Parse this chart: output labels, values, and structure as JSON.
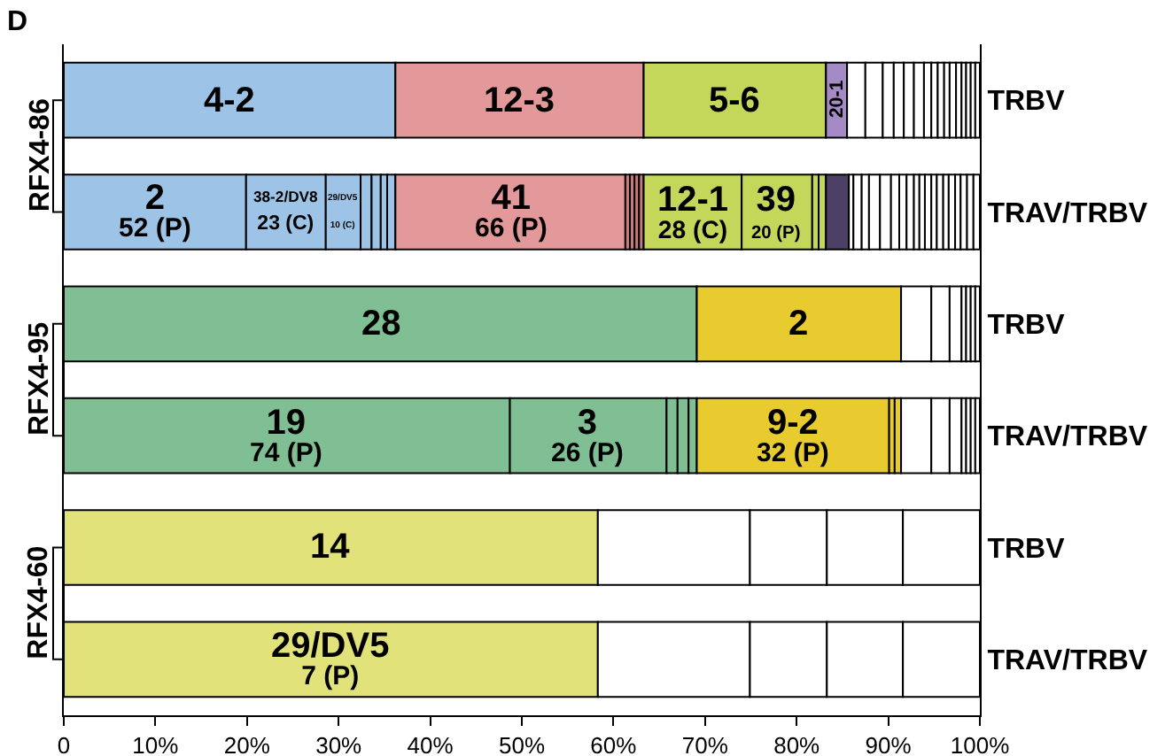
{
  "chart_data": {
    "type": "bar",
    "orientation": "horizontal",
    "stacked": true,
    "title": "D",
    "categories": [
      "TRBV",
      "TRAV/TRBV",
      "TRBV",
      "TRAV/TRBV",
      "TRBV",
      "TRAV/TRBV"
    ],
    "annotations": [
      "RFX4-86",
      "RFX4-95",
      "RFX4-60"
    ],
    "xlim": [
      0,
      100
    ],
    "xticks": [
      0,
      {
        "value": 10,
        "label": "10%"
      },
      {
        "value": 20,
        "label": "20%"
      },
      {
        "value": 30,
        "label": "30%"
      },
      {
        "value": 40,
        "label": "40%"
      },
      {
        "value": 50,
        "label": "50%"
      },
      {
        "value": 60,
        "label": "60%"
      },
      {
        "value": 70,
        "label": "70%"
      },
      {
        "value": 80,
        "label": "80%"
      },
      {
        "value": 90,
        "label": "90%"
      },
      {
        "value": 100,
        "label": "100%"
      }
    ],
    "grid": false,
    "legend": false,
    "series": [
      {
        "name": "4-2",
        "values": [
          36.2,
          null,
          null,
          null,
          null,
          null
        ],
        "color": "#9dc3e6"
      },
      {
        "name": "2\n52 (P)",
        "values": [
          null,
          19.9,
          null,
          null,
          null,
          null
        ],
        "color": "#9dc3e6"
      },
      {
        "name": "28",
        "values": [
          null,
          null,
          69.1,
          null,
          null,
          null
        ],
        "color": "#80be94"
      },
      {
        "name": "19\n74 (P)",
        "values": [
          null,
          null,
          null,
          48.7,
          null,
          null
        ],
        "color": "#80be94"
      },
      {
        "name": "14",
        "values": [
          null,
          null,
          null,
          null,
          58.3,
          null
        ],
        "color": "#e2e27a"
      },
      {
        "name": "29/DV5\n7 (P)",
        "values": [
          null,
          null,
          null,
          null,
          null,
          58.3
        ],
        "color": "#e2e27a"
      },
      {
        "name": "12-3",
        "values": [
          27.1,
          null,
          null,
          null,
          null,
          null
        ],
        "color": "#e3999a"
      },
      {
        "name": "38-2/DV8\n23 (C)",
        "values": [
          null,
          8.7,
          null,
          null,
          null,
          null
        ],
        "color": "#9dc3e6"
      },
      {
        "name": "2",
        "values": [
          null,
          null,
          22.3,
          null,
          null,
          null
        ],
        "color": "#e8cb2e"
      },
      {
        "name": "3\n26 (P)",
        "values": [
          null,
          null,
          null,
          17.1,
          null,
          null
        ],
        "color": "#80be94"
      },
      {
        "values": [
          null,
          null,
          null,
          null,
          16.6,
          16.6
        ],
        "color": "#ffffff"
      },
      {
        "name": "5-6",
        "values": [
          19.9,
          null,
          null,
          null,
          null,
          null
        ],
        "color": "#c5d75a"
      },
      {
        "name": "29/DV5\n10 (C)",
        "values": [
          null,
          3.8,
          null,
          null,
          null,
          null
        ],
        "color": "#9dc3e6"
      },
      {
        "values": [
          null,
          null,
          3.3,
          1.2,
          8.4,
          8.4
        ],
        "colors": [
          "#ffffff",
          "#ffffff",
          "#ffffff",
          "#80be94",
          "#ffffff",
          "#ffffff"
        ]
      },
      {
        "name": "20-1",
        "values": [
          2.3,
          null,
          null,
          null,
          null,
          null
        ],
        "color": "#a58bc6"
      },
      {
        "values": [
          null,
          1.2,
          2.0,
          1.2,
          8.3,
          8.3
        ],
        "colors": [
          "#ffffff",
          "#9dc3e6",
          "#ffffff",
          "#80be94",
          "#ffffff",
          "#ffffff"
        ]
      },
      {
        "values": [
          2.0,
          1.0,
          1.3,
          0.9,
          8.4,
          8.4
        ],
        "colors": [
          "#ffffff",
          "#9dc3e6",
          "#ffffff",
          "#80be94",
          "#ffffff",
          "#ffffff"
        ]
      },
      {
        "name": "9-2\n32 (P)",
        "values": [
          null,
          null,
          null,
          21.0,
          null,
          null
        ],
        "color": "#e8cb2e"
      },
      {
        "values": [
          1.9,
          0.7,
          0.5,
          null,
          null,
          null
        ],
        "colors": [
          "#ffffff",
          "#9dc3e6",
          "#ffffff",
          "#ffffff",
          "#ffffff",
          "#ffffff"
        ]
      },
      {
        "values": [
          1.2,
          0.9,
          0.5,
          0.6,
          null,
          null
        ],
        "colors": [
          "#ffffff",
          "#9dc3e6",
          "#ffffff",
          "#e8cb2e",
          "#ffffff",
          "#ffffff"
        ]
      },
      {
        "name": "41\n66 (P)",
        "values": [
          null,
          25.1,
          null,
          null,
          null,
          null
        ],
        "color": "#e3999a"
      },
      {
        "values": [
          1.1,
          null,
          0.5,
          0.7,
          null,
          null
        ],
        "colors": [
          "#ffffff",
          "#ffffff",
          "#ffffff",
          "#e8cb2e",
          "#ffffff",
          "#ffffff"
        ]
      },
      {
        "values": [
          1.1,
          0.5,
          0.5,
          3.3,
          null,
          null
        ],
        "colors": [
          "#ffffff",
          "#c97a7c",
          "#ffffff",
          "#ffffff",
          "#ffffff",
          "#ffffff"
        ]
      },
      {
        "values": [
          1.1,
          0.5,
          null,
          2.0,
          null,
          null
        ],
        "colors": [
          "#ffffff",
          "#c97a7c",
          "#ffffff",
          "#ffffff",
          "#ffffff",
          "#ffffff"
        ]
      },
      {
        "values": [
          0.8,
          0.5,
          null,
          1.3,
          null,
          null
        ],
        "colors": [
          "#ffffff",
          "#c97a7c",
          "#ffffff",
          "#ffffff",
          "#ffffff",
          "#ffffff"
        ]
      },
      {
        "values": [
          0.7,
          0.5,
          null,
          0.5,
          null,
          null
        ],
        "colors": [
          "#ffffff",
          "#c97a7c",
          "#ffffff",
          "#ffffff",
          "#ffffff",
          "#ffffff"
        ]
      },
      {
        "name": "12-1\n28 (C)",
        "values": [
          null,
          10.7,
          null,
          null,
          null,
          null
        ],
        "color": "#c5d75a"
      },
      {
        "values": [
          0.7,
          null,
          null,
          0.5,
          null,
          null
        ],
        "color": "#ffffff"
      },
      {
        "name": "39\n20 (P)",
        "values": [
          null,
          7.7,
          null,
          null,
          null,
          null
        ],
        "color": "#c5d75a"
      },
      {
        "values": [
          0.6,
          null,
          null,
          0.5,
          null,
          null
        ],
        "color": "#ffffff"
      },
      {
        "values": [
          0.7,
          0.7,
          null,
          0.5,
          null,
          null
        ],
        "colors": [
          "#ffffff",
          "#c5d75a",
          "#ffffff",
          "#ffffff",
          "#ffffff",
          "#ffffff"
        ]
      },
      {
        "values": [
          0.6,
          0.8,
          null,
          null,
          null,
          null
        ],
        "colors": [
          "#ffffff",
          "#c5d75a",
          "#ffffff",
          "#ffffff",
          "#ffffff",
          "#ffffff"
        ]
      },
      {
        "values": [
          0.5,
          2.5,
          null,
          null,
          null,
          null
        ],
        "colors": [
          "#ffffff",
          "#4d3f66",
          "#ffffff",
          "#ffffff",
          "#ffffff",
          "#ffffff"
        ]
      },
      {
        "values": [
          0.5,
          0.5,
          null,
          null,
          null,
          null
        ],
        "color": "#ffffff"
      },
      {
        "values": [
          0.5,
          0.9,
          null,
          null,
          null,
          null
        ],
        "color": "#ffffff"
      },
      {
        "values": [
          0.5,
          0.8,
          null,
          null,
          null,
          null
        ],
        "color": "#ffffff"
      },
      {
        "values": [
          null,
          1.2,
          null,
          null,
          null,
          null
        ],
        "color": "#ffffff"
      },
      {
        "values": [
          null,
          1.2,
          null,
          null,
          null,
          null
        ],
        "color": "#ffffff"
      },
      {
        "values": [
          null,
          0.9,
          null,
          null,
          null,
          null
        ],
        "color": "#ffffff"
      },
      {
        "values": [
          null,
          0.8,
          null,
          null,
          null,
          null
        ],
        "color": "#ffffff"
      },
      {
        "values": [
          null,
          0.8,
          null,
          null,
          null,
          null
        ],
        "color": "#ffffff"
      },
      {
        "values": [
          null,
          0.6,
          null,
          null,
          null,
          null
        ],
        "color": "#ffffff"
      },
      {
        "values": [
          null,
          0.6,
          null,
          null,
          null,
          null
        ],
        "color": "#ffffff"
      },
      {
        "values": [
          null,
          0.7,
          null,
          null,
          null,
          null
        ],
        "color": "#ffffff"
      },
      {
        "values": [
          null,
          0.6,
          null,
          null,
          null,
          null
        ],
        "color": "#ffffff"
      },
      {
        "values": [
          null,
          0.7,
          null,
          null,
          null,
          null
        ],
        "color": "#ffffff"
      },
      {
        "values": [
          null,
          0.6,
          null,
          null,
          null,
          null
        ],
        "color": "#ffffff"
      },
      {
        "values": [
          null,
          0.7,
          null,
          null,
          null,
          null
        ],
        "color": "#ffffff"
      },
      {
        "values": [
          null,
          0.6,
          null,
          null,
          null,
          null
        ],
        "color": "#ffffff"
      },
      {
        "values": [
          null,
          0.7,
          null,
          null,
          null,
          null
        ],
        "color": "#ffffff"
      },
      {
        "values": [
          null,
          0.7,
          null,
          null,
          null,
          null
        ],
        "color": "#ffffff"
      },
      {
        "values": [
          null,
          0.7,
          null,
          null,
          null,
          null
        ],
        "color": "#ffffff"
      }
    ]
  }
}
